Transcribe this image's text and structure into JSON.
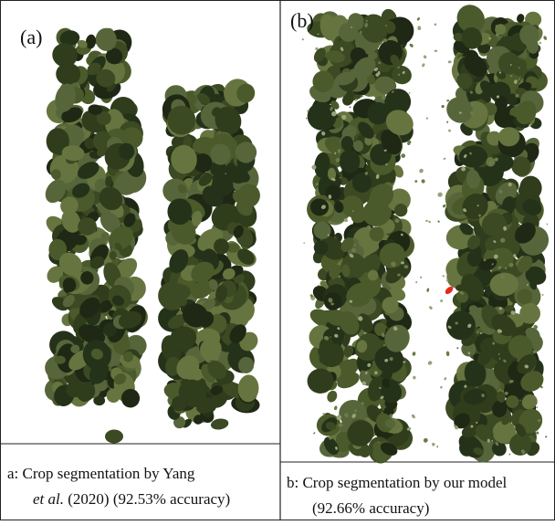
{
  "panels": [
    {
      "label": "(a)",
      "caption": {
        "line1": "a: Crop segmentation by Yang",
        "italic": "et al.",
        "rest": "(2020) (92.53% accuracy)"
      }
    },
    {
      "label": "(b)",
      "caption": {
        "line1": "b: Crop segmentation by our model",
        "line2": "(92.66% accuracy)"
      }
    }
  ]
}
